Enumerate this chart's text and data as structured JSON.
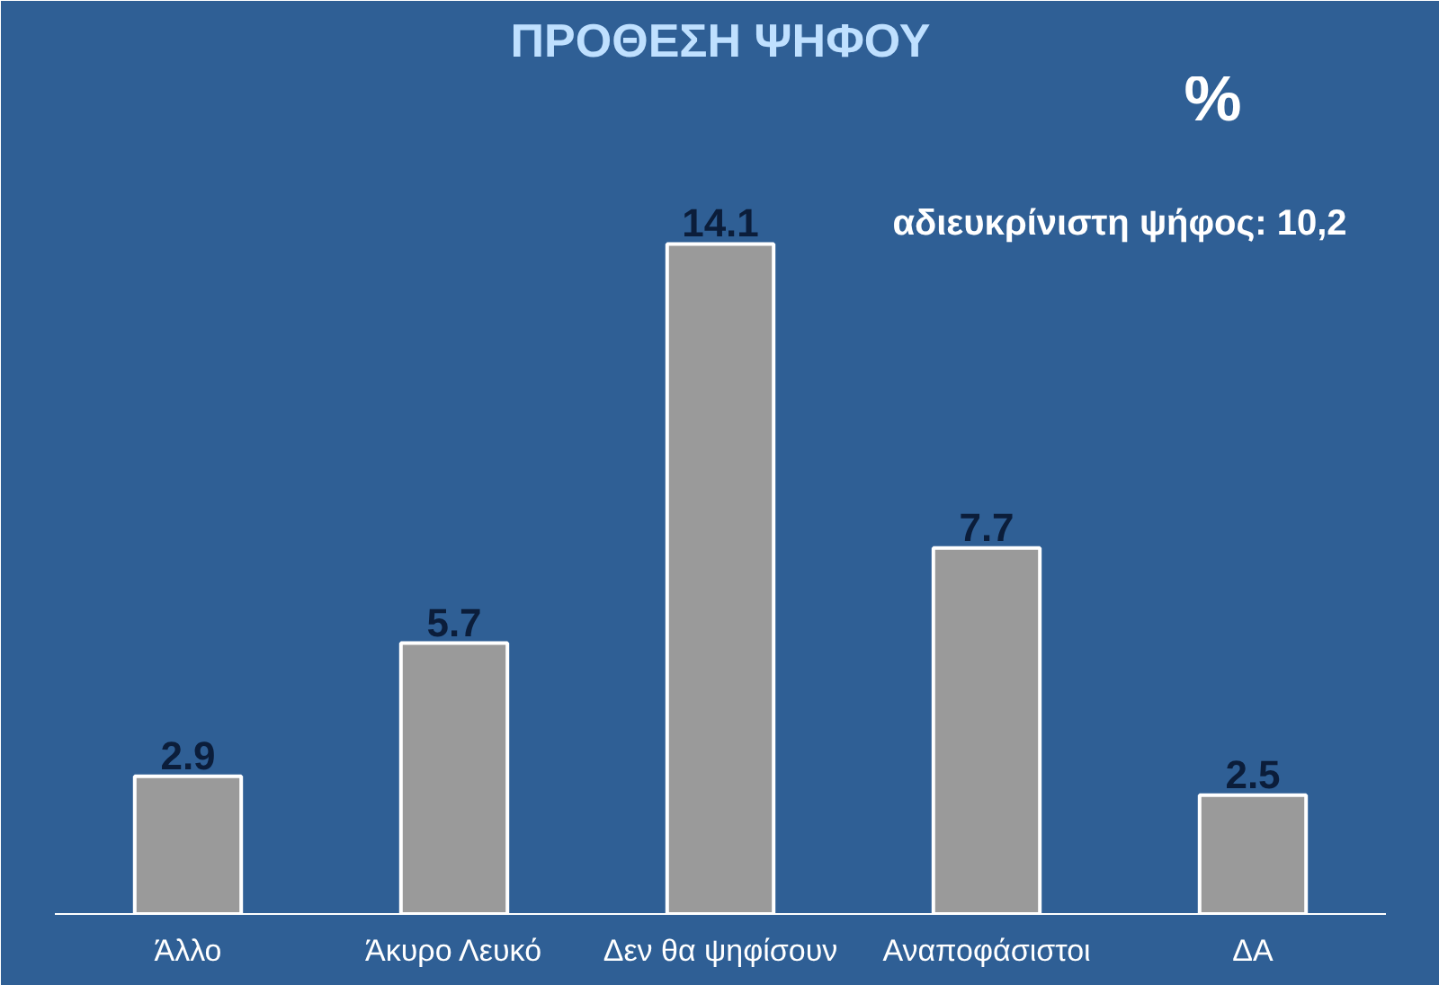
{
  "chart_data": {
    "type": "bar",
    "title": "ΠΡΟΘΕΣΗ ΨΗΦΟΥ",
    "categories": [
      "Άλλο",
      "Άκυρο Λευκό",
      "Δεν θα ψηφίσουν",
      "Αναποφάσιστοι",
      "ΔΑ"
    ],
    "values": [
      2.9,
      5.7,
      14.1,
      7.7,
      2.5
    ],
    "color": "#9a9a9a",
    "data_labels": true,
    "grid": false,
    "annotations": [
      "%",
      "αδιευκρίνιστη ψήφος: 10,2"
    ]
  }
}
